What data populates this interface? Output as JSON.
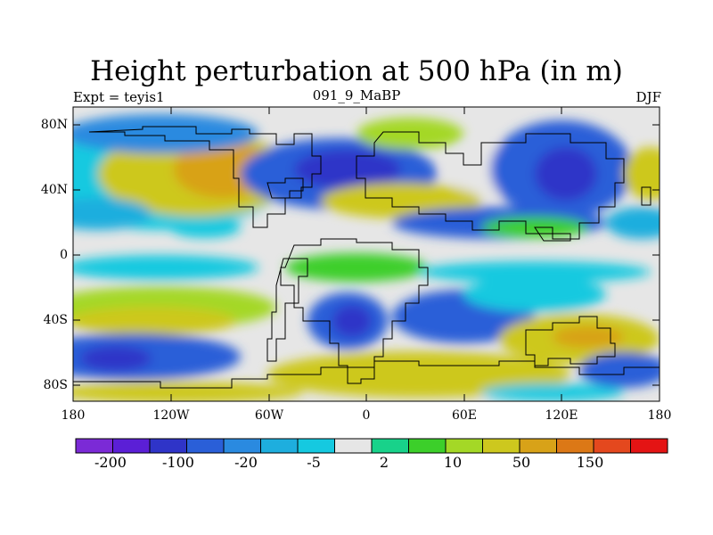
{
  "title": "Height perturbation at 500 hPa (in m)",
  "subtitle": {
    "left": "Expt = teyis1",
    "center": "091_9_MaBP",
    "right": "DJF"
  },
  "axes": {
    "y_ticks": [
      "80N",
      "40N",
      "0",
      "40S",
      "80S"
    ],
    "x_ticks": [
      "180",
      "120W",
      "60W",
      "0",
      "60E",
      "120E",
      "180"
    ]
  },
  "colorbar": {
    "colors": [
      "#7b2ad6",
      "#5b1fd6",
      "#2f34c8",
      "#2a5fd8",
      "#2a8ae0",
      "#1eaede",
      "#15c9e0",
      "#e6e6e6",
      "#18d28a",
      "#3ccf2a",
      "#a4d826",
      "#cdc81e",
      "#d8a218",
      "#dc7816",
      "#e4481e",
      "#e41414"
    ],
    "labels": [
      "-200",
      "-100",
      "-20",
      "-5",
      "2",
      "10",
      "50",
      "150"
    ]
  }
}
